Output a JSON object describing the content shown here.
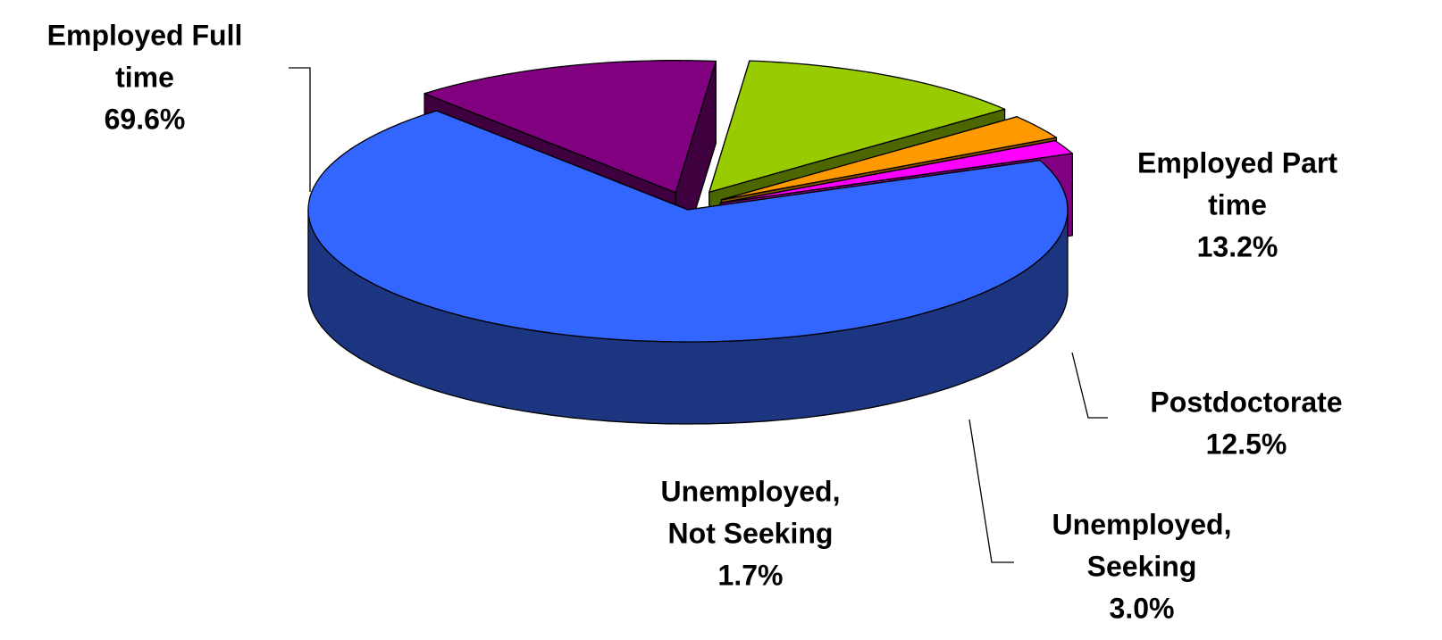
{
  "chart_data": {
    "type": "pie",
    "style": "3d-exploded",
    "legend": "none",
    "slices": [
      {
        "label_lines": [
          "Employed Full",
          "time"
        ],
        "value": 69.6,
        "value_label": "69.6%",
        "color": "#3366FF",
        "side_color": "#1C3580"
      },
      {
        "label_lines": [
          "Employed Part",
          "time"
        ],
        "value": 13.2,
        "value_label": "13.2%",
        "color": "#800080",
        "side_color": "#3F003F"
      },
      {
        "label_lines": [
          "Postdoctorate"
        ],
        "value": 12.5,
        "value_label": "12.5%",
        "color": "#99CC00",
        "side_color": "#4C6600"
      },
      {
        "label_lines": [
          "Unemployed,",
          "Seeking"
        ],
        "value": 3.0,
        "value_label": "3.0%",
        "color": "#FF9900",
        "side_color": "#7F4C00"
      },
      {
        "label_lines": [
          "Unemployed,",
          "Not Seeking"
        ],
        "value": 1.7,
        "value_label": "1.7%",
        "color": "#FF00FF",
        "side_color": "#800080"
      }
    ]
  }
}
